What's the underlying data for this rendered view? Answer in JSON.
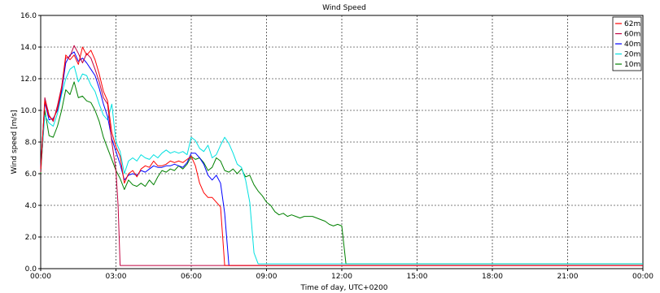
{
  "chart_data": {
    "type": "line",
    "title": "Wind Speed",
    "xlabel": "Time of day, UTC+0200",
    "ylabel": "Wind speed [m/s]",
    "xlim": [
      "00:00",
      "24:00"
    ],
    "ylim": [
      0,
      16
    ],
    "x_ticks": [
      "00:00",
      "03:00",
      "06:00",
      "09:00",
      "12:00",
      "15:00",
      "18:00",
      "21:00",
      "00:00"
    ],
    "y_ticks": [
      "0.0",
      "2.0",
      "4.0",
      "6.0",
      "8.0",
      "10.0",
      "12.0",
      "14.0",
      "16.0"
    ],
    "grid": true,
    "legend_position": "top-right",
    "series": [
      {
        "name": "62m",
        "color": "#ff0000",
        "x": [
          "00:00",
          "00:10",
          "00:20",
          "00:30",
          "00:40",
          "00:50",
          "01:00",
          "01:10",
          "01:20",
          "01:30",
          "01:40",
          "01:50",
          "02:00",
          "02:10",
          "02:20",
          "02:30",
          "02:40",
          "02:50",
          "03:00",
          "03:10",
          "03:20",
          "03:30",
          "03:40",
          "03:50",
          "04:00",
          "04:10",
          "04:20",
          "04:30",
          "04:40",
          "04:50",
          "05:00",
          "05:10",
          "05:20",
          "05:30",
          "05:40",
          "05:50",
          "06:00",
          "06:10",
          "06:20",
          "06:30",
          "06:40",
          "06:50",
          "07:00",
          "07:10",
          "07:20",
          "07:30",
          "08:00",
          "12:00",
          "18:00",
          "24:00"
        ],
        "values": [
          6.3,
          10.6,
          9.6,
          9.4,
          10.1,
          11.4,
          13.5,
          13.2,
          13.5,
          12.9,
          14.0,
          13.5,
          13.8,
          13.2,
          12.3,
          11.2,
          10.6,
          8.6,
          7.7,
          7.1,
          5.4,
          6.0,
          6.2,
          5.8,
          6.3,
          6.5,
          6.4,
          6.8,
          6.5,
          6.5,
          6.6,
          6.8,
          6.7,
          6.8,
          6.7,
          6.9,
          7.1,
          6.5,
          5.4,
          4.8,
          4.5,
          4.5,
          4.2,
          3.9,
          0.2,
          0.2,
          0.2,
          0.2,
          0.2,
          0.2
        ]
      },
      {
        "name": "60m",
        "color": "#c00040",
        "x": [
          "00:00",
          "00:10",
          "00:20",
          "00:30",
          "00:40",
          "00:50",
          "01:00",
          "01:10",
          "01:20",
          "01:30",
          "01:40",
          "01:50",
          "02:00",
          "02:10",
          "02:20",
          "02:30",
          "02:40",
          "02:50",
          "03:00",
          "03:05",
          "03:10",
          "04:00",
          "06:00",
          "09:00",
          "12:00",
          "15:00",
          "18:00",
          "21:00",
          "24:00"
        ],
        "values": [
          6.1,
          10.8,
          9.7,
          9.3,
          10.3,
          11.5,
          13.3,
          13.4,
          14.1,
          13.6,
          13.0,
          13.6,
          13.3,
          12.6,
          11.8,
          10.8,
          10.4,
          8.0,
          6.2,
          4.0,
          0.2,
          0.2,
          0.2,
          0.2,
          0.2,
          0.2,
          0.2,
          0.2,
          0.2
        ]
      },
      {
        "name": "40m",
        "color": "#0000ff",
        "x": [
          "00:00",
          "00:10",
          "00:20",
          "00:30",
          "00:40",
          "00:50",
          "01:00",
          "01:10",
          "01:20",
          "01:30",
          "01:40",
          "01:50",
          "02:00",
          "02:10",
          "02:20",
          "02:30",
          "02:40",
          "02:50",
          "03:00",
          "03:10",
          "03:20",
          "03:30",
          "03:40",
          "03:50",
          "04:00",
          "04:10",
          "04:20",
          "04:30",
          "04:40",
          "04:50",
          "05:00",
          "05:10",
          "05:20",
          "05:30",
          "05:40",
          "05:50",
          "06:00",
          "06:10",
          "06:20",
          "06:30",
          "06:40",
          "06:50",
          "07:00",
          "07:10",
          "07:20",
          "07:30",
          "07:40",
          "07:50",
          "12:00",
          "18:00",
          "24:00"
        ],
        "values": [
          6.4,
          10.5,
          9.4,
          9.5,
          10.0,
          11.2,
          13.0,
          13.5,
          13.7,
          13.1,
          13.3,
          13.0,
          12.6,
          12.2,
          11.4,
          10.4,
          9.6,
          8.2,
          7.4,
          6.6,
          5.6,
          5.9,
          6.0,
          5.9,
          6.2,
          6.1,
          6.3,
          6.5,
          6.4,
          6.4,
          6.5,
          6.5,
          6.6,
          6.5,
          6.4,
          6.7,
          7.3,
          7.3,
          7.0,
          6.6,
          5.9,
          5.6,
          5.9,
          5.4,
          3.5,
          0.2,
          0.2,
          0.2,
          0.2,
          0.2,
          0.2
        ]
      },
      {
        "name": "20m",
        "color": "#00e0e0",
        "x": [
          "00:00",
          "00:10",
          "00:20",
          "00:30",
          "00:40",
          "00:50",
          "01:00",
          "01:10",
          "01:20",
          "01:30",
          "01:40",
          "01:50",
          "02:00",
          "02:10",
          "02:20",
          "02:30",
          "02:40",
          "02:50",
          "03:00",
          "03:10",
          "03:20",
          "03:30",
          "03:40",
          "03:50",
          "04:00",
          "04:10",
          "04:20",
          "04:30",
          "04:40",
          "04:50",
          "05:00",
          "05:10",
          "05:20",
          "05:30",
          "05:40",
          "05:50",
          "06:00",
          "06:10",
          "06:20",
          "06:30",
          "06:40",
          "06:50",
          "07:00",
          "07:10",
          "07:20",
          "07:30",
          "07:40",
          "07:50",
          "08:00",
          "08:10",
          "08:20",
          "08:30",
          "08:40",
          "12:00",
          "18:00",
          "24:00"
        ],
        "values": [
          6.2,
          9.7,
          9.2,
          9.0,
          9.8,
          11.0,
          12.0,
          12.6,
          12.8,
          11.8,
          12.3,
          12.2,
          11.6,
          11.2,
          10.4,
          9.7,
          9.4,
          10.4,
          8.0,
          7.4,
          6.0,
          6.8,
          7.0,
          6.8,
          7.2,
          7.0,
          6.9,
          7.2,
          7.0,
          7.3,
          7.5,
          7.3,
          7.4,
          7.3,
          7.4,
          7.2,
          8.3,
          8.1,
          7.6,
          7.4,
          7.8,
          7.0,
          7.2,
          7.8,
          8.3,
          7.9,
          7.3,
          6.6,
          6.4,
          5.6,
          4.2,
          1.0,
          0.3,
          0.3,
          0.3,
          0.3
        ]
      },
      {
        "name": "10m",
        "color": "#008000",
        "x": [
          "00:00",
          "00:10",
          "00:20",
          "00:30",
          "00:40",
          "00:50",
          "01:00",
          "01:10",
          "01:20",
          "01:30",
          "01:40",
          "01:50",
          "02:00",
          "02:10",
          "02:20",
          "02:30",
          "02:40",
          "02:50",
          "03:00",
          "03:10",
          "03:20",
          "03:30",
          "03:40",
          "03:50",
          "04:00",
          "04:10",
          "04:20",
          "04:30",
          "04:40",
          "04:50",
          "05:00",
          "05:10",
          "05:20",
          "05:30",
          "05:40",
          "05:50",
          "06:00",
          "06:10",
          "06:20",
          "06:30",
          "06:40",
          "06:50",
          "07:00",
          "07:10",
          "07:20",
          "07:30",
          "07:40",
          "07:50",
          "08:00",
          "08:10",
          "08:20",
          "08:30",
          "08:40",
          "08:50",
          "09:00",
          "09:10",
          "09:20",
          "09:30",
          "09:40",
          "09:50",
          "10:00",
          "10:10",
          "10:20",
          "10:30",
          "10:40",
          "10:50",
          "11:00",
          "11:10",
          "11:20",
          "11:30",
          "11:40",
          "11:50",
          "12:00",
          "12:10",
          "12:20",
          "12:30",
          "12:40",
          "12:50",
          "13:00",
          "18:00",
          "24:00"
        ],
        "values": [
          6.0,
          10.0,
          8.4,
          8.3,
          9.0,
          10.0,
          11.3,
          11.0,
          11.8,
          10.8,
          10.9,
          10.6,
          10.5,
          10.0,
          9.3,
          8.3,
          7.6,
          6.9,
          6.2,
          5.7,
          5.0,
          5.6,
          5.3,
          5.2,
          5.4,
          5.2,
          5.6,
          5.3,
          5.8,
          6.2,
          6.1,
          6.3,
          6.2,
          6.5,
          6.3,
          6.6,
          7.1,
          6.9,
          7.0,
          6.7,
          6.2,
          6.4,
          7.0,
          6.8,
          6.2,
          6.1,
          6.3,
          6.0,
          6.3,
          5.8,
          5.9,
          5.3,
          4.9,
          4.6,
          4.2,
          4.0,
          3.6,
          3.4,
          3.5,
          3.3,
          3.4,
          3.3,
          3.2,
          3.3,
          3.3,
          3.3,
          3.2,
          3.1,
          3.0,
          2.8,
          2.7,
          2.8,
          2.7,
          0.3,
          0.3,
          0.3,
          0.3,
          0.3,
          0.3,
          0.3,
          0.3
        ]
      }
    ]
  }
}
